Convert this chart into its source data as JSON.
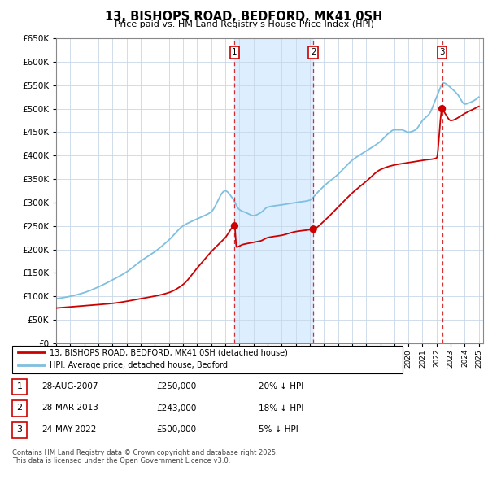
{
  "title": "13, BISHOPS ROAD, BEDFORD, MK41 0SH",
  "subtitle": "Price paid vs. HM Land Registry's House Price Index (HPI)",
  "ylim": [
    0,
    650000
  ],
  "ytick_vals": [
    0,
    50000,
    100000,
    150000,
    200000,
    250000,
    300000,
    350000,
    400000,
    450000,
    500000,
    550000,
    600000,
    650000
  ],
  "hpi_color": "#7fbfdf",
  "price_color": "#cc0000",
  "sale_marker_color": "#cc0000",
  "background_color": "#ffffff",
  "grid_color": "#c8d8e8",
  "shade_color": "#ddeeff",
  "purchases": [
    {
      "label": "1",
      "date_str": "28-AUG-2007",
      "price": 250000,
      "note": "20% ↓ HPI"
    },
    {
      "label": "2",
      "date_str": "28-MAR-2013",
      "price": 243000,
      "note": "18% ↓ HPI"
    },
    {
      "label": "3",
      "date_str": "24-MAY-2022",
      "price": 500000,
      "note": "5% ↓ HPI"
    }
  ],
  "vline_color": "#cc0000",
  "legend_label_price": "13, BISHOPS ROAD, BEDFORD, MK41 0SH (detached house)",
  "legend_label_hpi": "HPI: Average price, detached house, Bedford",
  "footer": "Contains HM Land Registry data © Crown copyright and database right 2025.\nThis data is licensed under the Open Government Licence v3.0.",
  "sale_dates": [
    2007.664,
    2013.247,
    2022.389
  ],
  "sale_prices": [
    250000,
    243000,
    500000
  ],
  "hpi_keypoints_x": [
    1995,
    1996,
    1997,
    1998,
    1999,
    2000,
    2001,
    2002,
    2003,
    2004,
    2005,
    2006,
    2007,
    2007.5,
    2008,
    2008.5,
    2009,
    2009.5,
    2010,
    2011,
    2012,
    2013,
    2013.5,
    2014,
    2015,
    2016,
    2017,
    2018,
    2018.5,
    2019,
    2019.5,
    2020,
    2020.5,
    2021,
    2021.5,
    2022,
    2022.5,
    2023,
    2023.5,
    2024,
    2024.5,
    2025
  ],
  "hpi_keypoints_y": [
    95000,
    100000,
    108000,
    120000,
    135000,
    152000,
    175000,
    195000,
    220000,
    250000,
    265000,
    280000,
    325000,
    310000,
    285000,
    278000,
    272000,
    278000,
    290000,
    295000,
    300000,
    305000,
    320000,
    335000,
    360000,
    390000,
    410000,
    430000,
    445000,
    455000,
    455000,
    450000,
    455000,
    475000,
    490000,
    525000,
    555000,
    545000,
    530000,
    510000,
    515000,
    525000
  ],
  "red_keypoints_x": [
    1995,
    1997,
    1999,
    2001,
    2003,
    2004,
    2005,
    2006,
    2007,
    2007.664,
    2007.8,
    2008.2,
    2009,
    2009.5,
    2010,
    2011,
    2012,
    2013,
    2013.247,
    2014,
    2015,
    2016,
    2017,
    2018,
    2019,
    2020,
    2021,
    2022,
    2022.389,
    2022.6,
    2023,
    2024,
    2025
  ],
  "red_keypoints_y": [
    75000,
    80000,
    85000,
    95000,
    108000,
    125000,
    160000,
    195000,
    225000,
    250000,
    205000,
    210000,
    215000,
    218000,
    225000,
    230000,
    238000,
    242000,
    243000,
    260000,
    290000,
    320000,
    345000,
    370000,
    380000,
    385000,
    390000,
    395000,
    500000,
    490000,
    475000,
    490000,
    505000
  ]
}
